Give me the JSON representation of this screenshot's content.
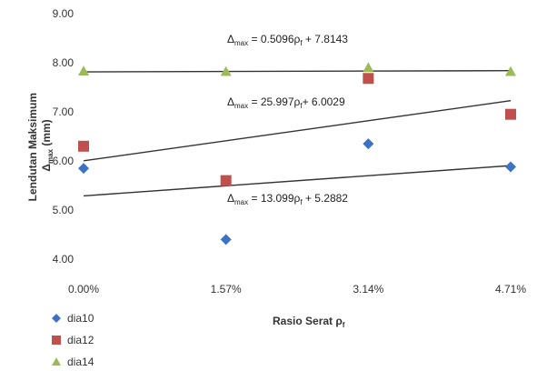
{
  "chart_data": {
    "type": "scatter",
    "ylabel_main": "Lendutan Maksimum",
    "ylabel_sym": "Δ",
    "ylabel_sub": "max",
    "ylabel_unit": " (mm)",
    "xlabel_main": "Rasio Serat ρ",
    "xlabel_sub": "f",
    "categories": [
      "0.00%",
      "1.57%",
      "3.14%",
      "4.71%"
    ],
    "x": [
      0.0,
      0.0157,
      0.0314,
      0.0471
    ],
    "ylim": [
      4.0,
      9.0
    ],
    "yticks": [
      "4.00",
      "5.00",
      "6.00",
      "7.00",
      "8.00",
      "9.00"
    ],
    "grid": false,
    "legend_position": "bottom-left",
    "series": [
      {
        "name": "dia10",
        "marker": "diamond",
        "color": "#3d72c4",
        "values": [
          5.85,
          4.4,
          6.35,
          5.88
        ],
        "trend": {
          "slope": 13.099,
          "intercept": 5.2882,
          "eq_lhs": "Δ",
          "eq_lhs_sub": "max",
          "eq_mid": " = 13.099ρ",
          "eq_sub": "f",
          "eq_rhs": " + 5.2882"
        }
      },
      {
        "name": "dia12",
        "marker": "square",
        "color": "#c0504d",
        "values": [
          6.3,
          5.6,
          7.68,
          6.95
        ],
        "trend": {
          "slope": 25.997,
          "intercept": 6.0029,
          "eq_lhs": "Δ",
          "eq_lhs_sub": "max",
          "eq_mid": " = 25.997ρ",
          "eq_sub": "f",
          "eq_rhs": "+ 6.0029"
        }
      },
      {
        "name": "dia14",
        "marker": "triangle",
        "color": "#9bbb59",
        "values": [
          7.83,
          7.82,
          7.9,
          7.82
        ],
        "trend": {
          "slope": 0.5096,
          "intercept": 7.8143,
          "eq_lhs": "Δ",
          "eq_lhs_sub": "max",
          "eq_mid": " = 0.5096ρ",
          "eq_sub": "f",
          "eq_rhs": " + 7.8143"
        }
      }
    ]
  }
}
